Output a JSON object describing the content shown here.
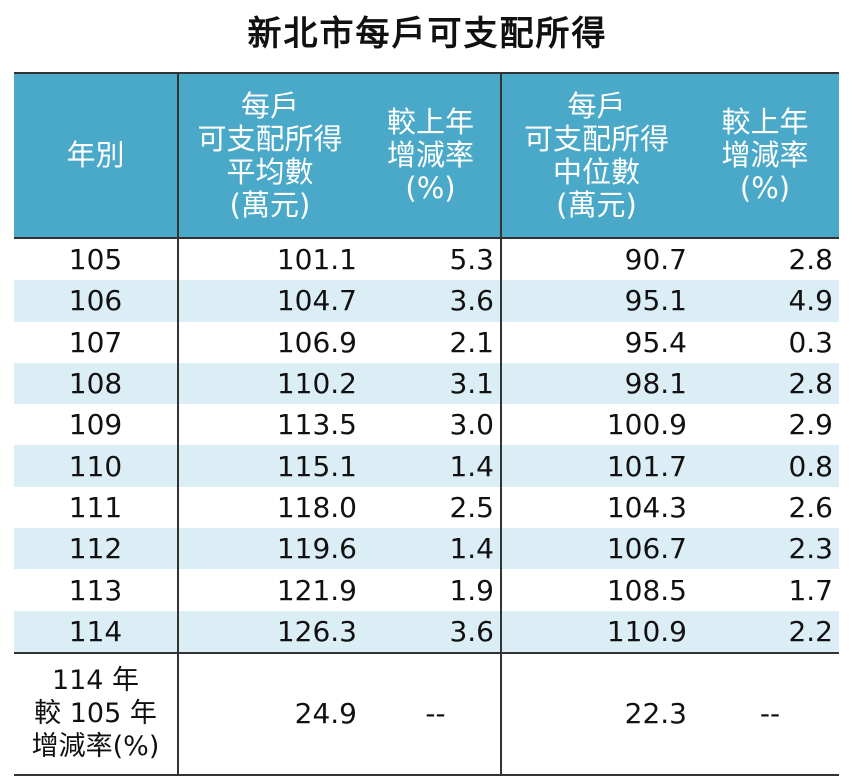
{
  "title": "新北市每戶可支配所得",
  "headers": {
    "year": [
      "年別"
    ],
    "mean": [
      "每戶",
      "可支配所得",
      "平均數",
      "(萬元)"
    ],
    "mean_rate": [
      "較上年",
      "增減率",
      "(%)"
    ],
    "median": [
      "每戶",
      "可支配所得",
      "中位數",
      "(萬元)"
    ],
    "median_rate": [
      "較上年",
      "增減率",
      "(%)"
    ]
  },
  "rows": [
    {
      "year": "105",
      "mean": "101.1",
      "mean_rate": "5.3",
      "median": "90.7",
      "median_rate": "2.8"
    },
    {
      "year": "106",
      "mean": "104.7",
      "mean_rate": "3.6",
      "median": "95.1",
      "median_rate": "4.9"
    },
    {
      "year": "107",
      "mean": "106.9",
      "mean_rate": "2.1",
      "median": "95.4",
      "median_rate": "0.3"
    },
    {
      "year": "108",
      "mean": "110.2",
      "mean_rate": "3.1",
      "median": "98.1",
      "median_rate": "2.8"
    },
    {
      "year": "109",
      "mean": "113.5",
      "mean_rate": "3.0",
      "median": "100.9",
      "median_rate": "2.9"
    },
    {
      "year": "110",
      "mean": "115.1",
      "mean_rate": "1.4",
      "median": "101.7",
      "median_rate": "0.8"
    },
    {
      "year": "111",
      "mean": "118.0",
      "mean_rate": "2.5",
      "median": "104.3",
      "median_rate": "2.6"
    },
    {
      "year": "112",
      "mean": "119.6",
      "mean_rate": "1.4",
      "median": "106.7",
      "median_rate": "2.3"
    },
    {
      "year": "113",
      "mean": "121.9",
      "mean_rate": "1.9",
      "median": "108.5",
      "median_rate": "1.7"
    },
    {
      "year": "114",
      "mean": "126.3",
      "mean_rate": "3.6",
      "median": "110.9",
      "median_rate": "2.2"
    }
  ],
  "summary": {
    "label": [
      "114 年",
      "較 105 年",
      "增減率(%)"
    ],
    "mean": "24.9",
    "mean_rate": "--",
    "median": "22.3",
    "median_rate": "--"
  },
  "colors": {
    "header_bg": "#4aa8c8",
    "stripe_bg": "#dbeef6",
    "header_text": "#ffffff"
  }
}
